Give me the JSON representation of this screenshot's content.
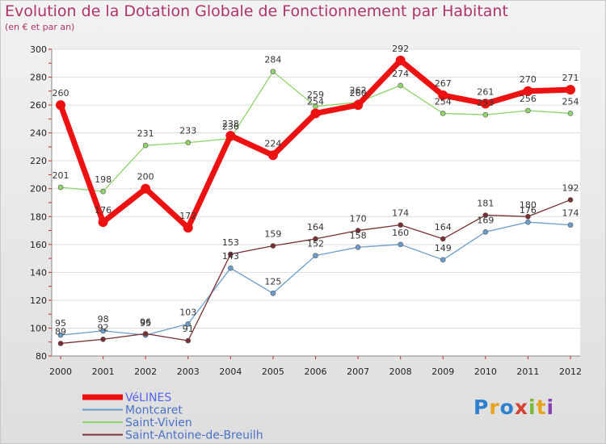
{
  "title": "Evolution de la Dotation Globale de Fonctionnement par Habitant",
  "subtitle": "(en € et par an)",
  "logo": [
    "P",
    "r",
    "o",
    "x",
    "i",
    "t",
    "i"
  ],
  "logo_colors": [
    "#2f7fd1",
    "#e8a21b",
    "#2f7fd1",
    "#d8402f",
    "#7ab836",
    "#e8a21b",
    "#8a3fb5"
  ],
  "chart_data": {
    "type": "line",
    "x": [
      "2000",
      "2001",
      "2002",
      "2003",
      "2004",
      "2005",
      "2006",
      "2007",
      "2008",
      "2009",
      "2010",
      "2011",
      "2012"
    ],
    "ylim": [
      80,
      300
    ],
    "yticks": [
      80,
      100,
      120,
      140,
      160,
      180,
      200,
      220,
      240,
      260,
      280,
      300
    ],
    "series": [
      {
        "name": "Saint-Vivien",
        "color": "#8fd46a",
        "width": 1.3,
        "marker": 3,
        "values": [
          201,
          198,
          231,
          233,
          236,
          284,
          259,
          262,
          274,
          254,
          253,
          256,
          254
        ]
      },
      {
        "name": "Montcaret",
        "color": "#6a9ccc",
        "width": 1.3,
        "marker": 3,
        "values": [
          95,
          98,
          95,
          103,
          143,
          125,
          152,
          158,
          160,
          149,
          169,
          176,
          174
        ]
      },
      {
        "name": "Saint-Antoine-de-Breuilh",
        "color": "#7a2e32",
        "width": 1.3,
        "marker": 3,
        "values": [
          89,
          92,
          96,
          91,
          153,
          159,
          164,
          170,
          174,
          164,
          181,
          180,
          192
        ]
      },
      {
        "name": "VéLINES",
        "color": "#ee1111",
        "width": 7,
        "marker": 6,
        "values": [
          260,
          176,
          200,
          172,
          238,
          224,
          254,
          260,
          292,
          267,
          261,
          270,
          271
        ]
      }
    ],
    "legend_order": [
      "VéLINES",
      "Montcaret",
      "Saint-Vivien",
      "Saint-Antoine-de-Breuilh"
    ],
    "legend_colors": {
      "VéLINES": "#5566ee",
      "Montcaret": "#4a70c8",
      "Saint-Vivien": "#4a70c8",
      "Saint-Antoine-de-Breuilh": "#4a70c8"
    }
  }
}
